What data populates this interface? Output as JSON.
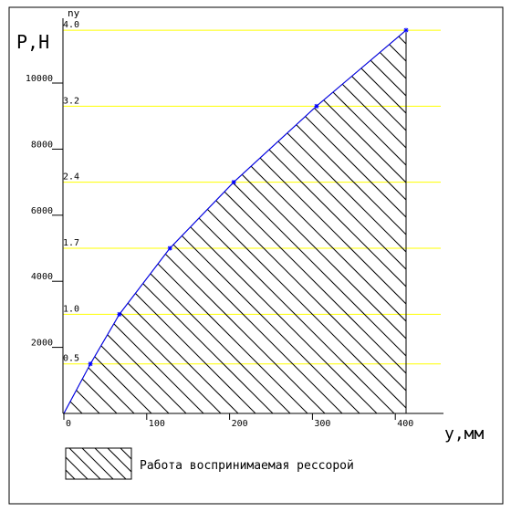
{
  "chart_data": {
    "type": "area",
    "ylabel": "P,H",
    "xlabel": "y,мм",
    "ny_label": "ny",
    "x": [
      0,
      32,
      67,
      128,
      205,
      305,
      413
    ],
    "y": [
      0,
      1500,
      3000,
      5000,
      7000,
      9300,
      11600
    ],
    "x_ticks": [
      0,
      100,
      200,
      300,
      400
    ],
    "y_ticks": [
      2000,
      4000,
      6000,
      8000,
      10000
    ],
    "ny_lines": [
      {
        "label": "0.5",
        "p": 1500
      },
      {
        "label": "1.0",
        "p": 3000
      },
      {
        "label": "1.7",
        "p": 5000
      },
      {
        "label": "2.4",
        "p": 7000
      },
      {
        "label": "3.2",
        "p": 9300
      },
      {
        "label": "4.0",
        "p": 11600
      }
    ],
    "xlim": [
      0,
      413
    ],
    "ylim": [
      0,
      11600
    ],
    "legend": {
      "label": "Работа воспринимаемая рессорой",
      "position": "bottom-left"
    },
    "colors": {
      "curve": "#0000ff",
      "ny_lines": "#ffff00",
      "hatch": "#000000",
      "frame": "#000000"
    }
  }
}
